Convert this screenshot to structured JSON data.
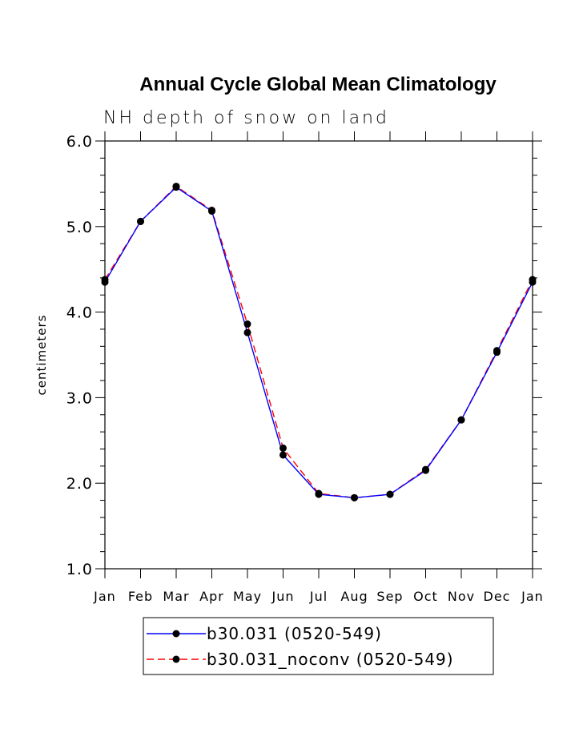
{
  "chart_data": {
    "type": "line",
    "title": "Annual Cycle Global Mean Climatology",
    "subtitle": "NH depth of snow on land",
    "xlabel": "",
    "ylabel": "centimeters",
    "ylim": [
      1.0,
      6.0
    ],
    "yticks": [
      "1.0",
      "2.0",
      "3.0",
      "4.0",
      "5.0",
      "6.0"
    ],
    "categories": [
      "Jan",
      "Feb",
      "Mar",
      "Apr",
      "May",
      "Jun",
      "Jul",
      "Aug",
      "Sep",
      "Oct",
      "Nov",
      "Dec",
      "Jan"
    ],
    "grid": false,
    "legend_position": "bottom-center",
    "series": [
      {
        "name": "b30.031 (0520-549)",
        "color": "#0000ff",
        "line_style": "solid",
        "marker": "filled-circle",
        "values": [
          4.35,
          5.06,
          5.46,
          5.18,
          3.76,
          2.33,
          1.87,
          1.83,
          1.87,
          2.15,
          2.74,
          3.53,
          4.35
        ]
      },
      {
        "name": "b30.031_noconv (0520-549)",
        "color": "#ff0000",
        "line_style": "dashed",
        "marker": "filled-circle",
        "values": [
          4.38,
          5.06,
          5.47,
          5.19,
          3.86,
          2.41,
          1.88,
          1.83,
          1.87,
          2.16,
          2.74,
          3.55,
          4.38
        ]
      }
    ]
  }
}
